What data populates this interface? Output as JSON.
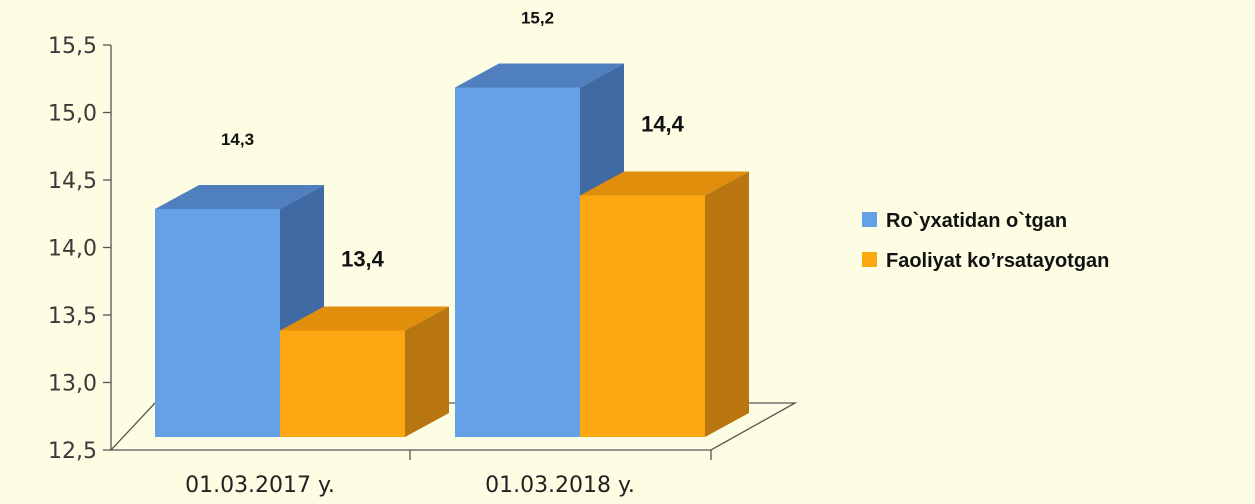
{
  "chart_data": {
    "type": "bar",
    "title": "",
    "xlabel": "",
    "ylabel": "",
    "ylim": [
      12.5,
      15.5
    ],
    "yticks": [
      "12,5",
      "13,0",
      "13,5",
      "14,0",
      "14,5",
      "15,0",
      "15,5"
    ],
    "categories": [
      "01.03.2017 y.",
      "01.03.2018 y."
    ],
    "series": [
      {
        "name": "Ro`yxatidan o`tgan",
        "values": [
          14.3,
          15.2
        ],
        "labels": [
          "14,3",
          "15,2"
        ],
        "color": "#65a1e6",
        "side_color": "#3f6aa4",
        "top_color": "#4f7fbf"
      },
      {
        "name": "Faoliyat ko’rsatayotgan",
        "values": [
          13.4,
          14.4
        ],
        "labels": [
          "13,4",
          "14,4"
        ],
        "color": "#fca612",
        "side_color": "#b87510",
        "top_color": "#e08e0b"
      }
    ],
    "grid": false,
    "legend_position": "right",
    "three_d": true
  }
}
